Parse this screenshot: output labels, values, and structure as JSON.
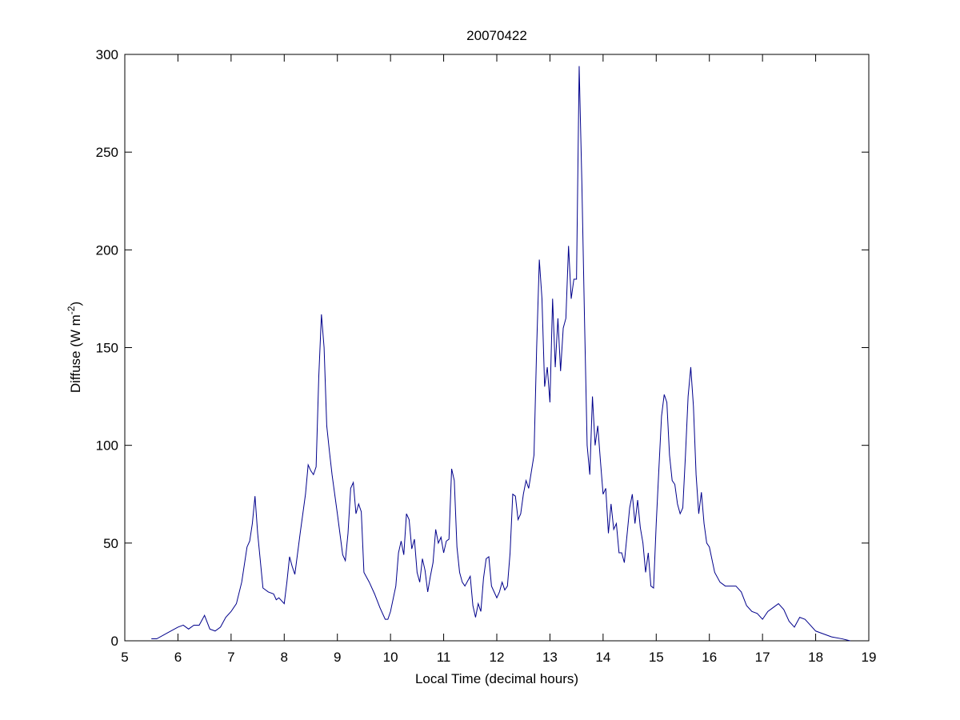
{
  "chart_data": {
    "type": "line",
    "title": "20070422",
    "xlabel": "Local Time (decimal hours)",
    "ylabel_parts": [
      "Diffuse (W m",
      "-2",
      ")"
    ],
    "xlim": [
      5,
      19
    ],
    "ylim": [
      0,
      300
    ],
    "xticks": [
      5,
      6,
      7,
      8,
      9,
      10,
      11,
      12,
      13,
      14,
      15,
      16,
      17,
      18,
      19
    ],
    "yticks": [
      0,
      50,
      100,
      150,
      200,
      250,
      300
    ],
    "grid": false,
    "series": [
      {
        "color": "#00008b",
        "x": [
          5.5,
          5.6,
          5.8,
          6.0,
          6.1,
          6.2,
          6.3,
          6.4,
          6.5,
          6.6,
          6.7,
          6.8,
          6.9,
          7.0,
          7.1,
          7.2,
          7.3,
          7.35,
          7.4,
          7.45,
          7.5,
          7.6,
          7.7,
          7.8,
          7.85,
          7.9,
          8.0,
          8.05,
          8.1,
          8.15,
          8.2,
          8.3,
          8.4,
          8.45,
          8.5,
          8.55,
          8.6,
          8.65,
          8.7,
          8.75,
          8.8,
          8.85,
          8.9,
          9.0,
          9.1,
          9.15,
          9.2,
          9.25,
          9.3,
          9.35,
          9.4,
          9.45,
          9.5,
          9.6,
          9.7,
          9.8,
          9.9,
          9.95,
          10.0,
          10.1,
          10.15,
          10.2,
          10.25,
          10.3,
          10.35,
          10.4,
          10.45,
          10.5,
          10.55,
          10.6,
          10.65,
          10.7,
          10.75,
          10.8,
          10.85,
          10.9,
          10.95,
          11.0,
          11.05,
          11.1,
          11.15,
          11.2,
          11.25,
          11.3,
          11.35,
          11.4,
          11.5,
          11.55,
          11.6,
          11.65,
          11.7,
          11.75,
          11.8,
          11.85,
          11.9,
          12.0,
          12.05,
          12.1,
          12.15,
          12.2,
          12.25,
          12.3,
          12.35,
          12.4,
          12.45,
          12.5,
          12.55,
          12.6,
          12.7,
          12.75,
          12.8,
          12.85,
          12.9,
          12.95,
          13.0,
          13.05,
          13.1,
          13.15,
          13.2,
          13.25,
          13.3,
          13.35,
          13.4,
          13.45,
          13.5,
          13.55,
          13.6,
          13.65,
          13.7,
          13.75,
          13.8,
          13.85,
          13.9,
          13.95,
          14.0,
          14.05,
          14.1,
          14.15,
          14.2,
          14.25,
          14.3,
          14.35,
          14.4,
          14.5,
          14.55,
          14.6,
          14.65,
          14.7,
          14.75,
          14.8,
          14.85,
          14.9,
          14.95,
          15.0,
          15.05,
          15.1,
          15.15,
          15.2,
          15.25,
          15.3,
          15.35,
          15.4,
          15.45,
          15.5,
          15.55,
          15.6,
          15.65,
          15.7,
          15.75,
          15.8,
          15.85,
          15.9,
          15.95,
          16.0,
          16.1,
          16.2,
          16.3,
          16.5,
          16.6,
          16.7,
          16.8,
          16.9,
          17.0,
          17.1,
          17.2,
          17.3,
          17.4,
          17.5,
          17.6,
          17.7,
          17.8,
          17.9,
          18.0,
          18.1,
          18.3,
          18.5,
          18.65
        ],
        "values": [
          1,
          1,
          4,
          7,
          8,
          6,
          8,
          8,
          13,
          6,
          5,
          7,
          12,
          15,
          19,
          30,
          48,
          51,
          60,
          74,
          55,
          27,
          25,
          24,
          21,
          22,
          19,
          30,
          43,
          38,
          34,
          55,
          75,
          90,
          87,
          85,
          89,
          135,
          167,
          150,
          110,
          97,
          85,
          65,
          44,
          41,
          55,
          78,
          81,
          65,
          70,
          66,
          35,
          30,
          24,
          17,
          11,
          11,
          15,
          28,
          45,
          51,
          44,
          65,
          62,
          47,
          52,
          35,
          30,
          42,
          36,
          25,
          33,
          40,
          57,
          50,
          53,
          45,
          51,
          52,
          88,
          82,
          48,
          35,
          30,
          28,
          33,
          18,
          12,
          19,
          15,
          32,
          42,
          43,
          28,
          22,
          25,
          30,
          26,
          28,
          45,
          75,
          74,
          62,
          65,
          75,
          82,
          78,
          95,
          150,
          195,
          175,
          130,
          140,
          122,
          175,
          140,
          165,
          138,
          160,
          165,
          202,
          175,
          185,
          185,
          294,
          235,
          165,
          100,
          85,
          125,
          100,
          110,
          92,
          75,
          78,
          55,
          70,
          57,
          60,
          45,
          45,
          40,
          68,
          75,
          60,
          72,
          58,
          50,
          35,
          45,
          28,
          27,
          60,
          88,
          115,
          126,
          122,
          95,
          82,
          80,
          70,
          65,
          68,
          95,
          125,
          140,
          120,
          85,
          65,
          76,
          60,
          50,
          48,
          35,
          30,
          28,
          28,
          25,
          18,
          15,
          14,
          11,
          15,
          17,
          19,
          16,
          10,
          7,
          12,
          11,
          8,
          5,
          4,
          2,
          1,
          0
        ]
      }
    ]
  }
}
